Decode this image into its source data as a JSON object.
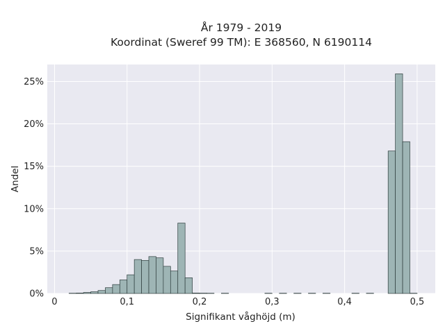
{
  "chart_data": {
    "type": "bar",
    "title": "År 1979 - 2019",
    "subtitle": "Koordinat (Sweref 99 TM): E 368560, N 6190114",
    "xlabel": "Signifikant våghöjd (m)",
    "ylabel": "Andel",
    "xlim": [
      -0.01,
      0.525
    ],
    "ylim": [
      0,
      0.27
    ],
    "x_ticks": [
      0,
      0.1,
      0.2,
      0.3,
      0.4,
      0.5
    ],
    "x_tick_labels": [
      "0",
      "0,1",
      "0,2",
      "0,3",
      "0,4",
      "0,5"
    ],
    "y_ticks": [
      0,
      0.05,
      0.1,
      0.15,
      0.2,
      0.25
    ],
    "y_tick_labels": [
      "0%",
      "5%",
      "10%",
      "15%",
      "20%",
      "25%"
    ],
    "bin_width": 0.01,
    "bin_starts": [
      0.02,
      0.03,
      0.04,
      0.05,
      0.06,
      0.07,
      0.08,
      0.09,
      0.1,
      0.11,
      0.12,
      0.13,
      0.14,
      0.15,
      0.16,
      0.17,
      0.18,
      0.19,
      0.2,
      0.21,
      0.22,
      0.23,
      0.24,
      0.25,
      0.26,
      0.27,
      0.28,
      0.29,
      0.3,
      0.31,
      0.32,
      0.33,
      0.34,
      0.35,
      0.36,
      0.37,
      0.38,
      0.39,
      0.4,
      0.41,
      0.42,
      0.43,
      0.44,
      0.45,
      0.46,
      0.47,
      0.48,
      0.49
    ],
    "values": [
      0.0003,
      0.0005,
      0.0012,
      0.002,
      0.0035,
      0.0068,
      0.0105,
      0.016,
      0.022,
      0.04,
      0.039,
      0.0435,
      0.042,
      0.032,
      0.0265,
      0.083,
      0.0185,
      0.0005,
      0.0004,
      0.0003,
      0,
      0.0003,
      0,
      0,
      0,
      0,
      0,
      0.0003,
      0,
      0.0003,
      0,
      0.0003,
      0,
      0.0003,
      0,
      0.0003,
      0,
      0,
      0,
      0.0003,
      0,
      0.0003,
      0,
      0,
      0.168,
      0.259,
      0.179,
      0.0003
    ],
    "grid": true,
    "colors": {
      "bar_fill": "#9eb5b5",
      "bar_edge": "#2e3d3d",
      "plot_bg": "#e9e9f1",
      "grid": "#ffffff"
    }
  }
}
